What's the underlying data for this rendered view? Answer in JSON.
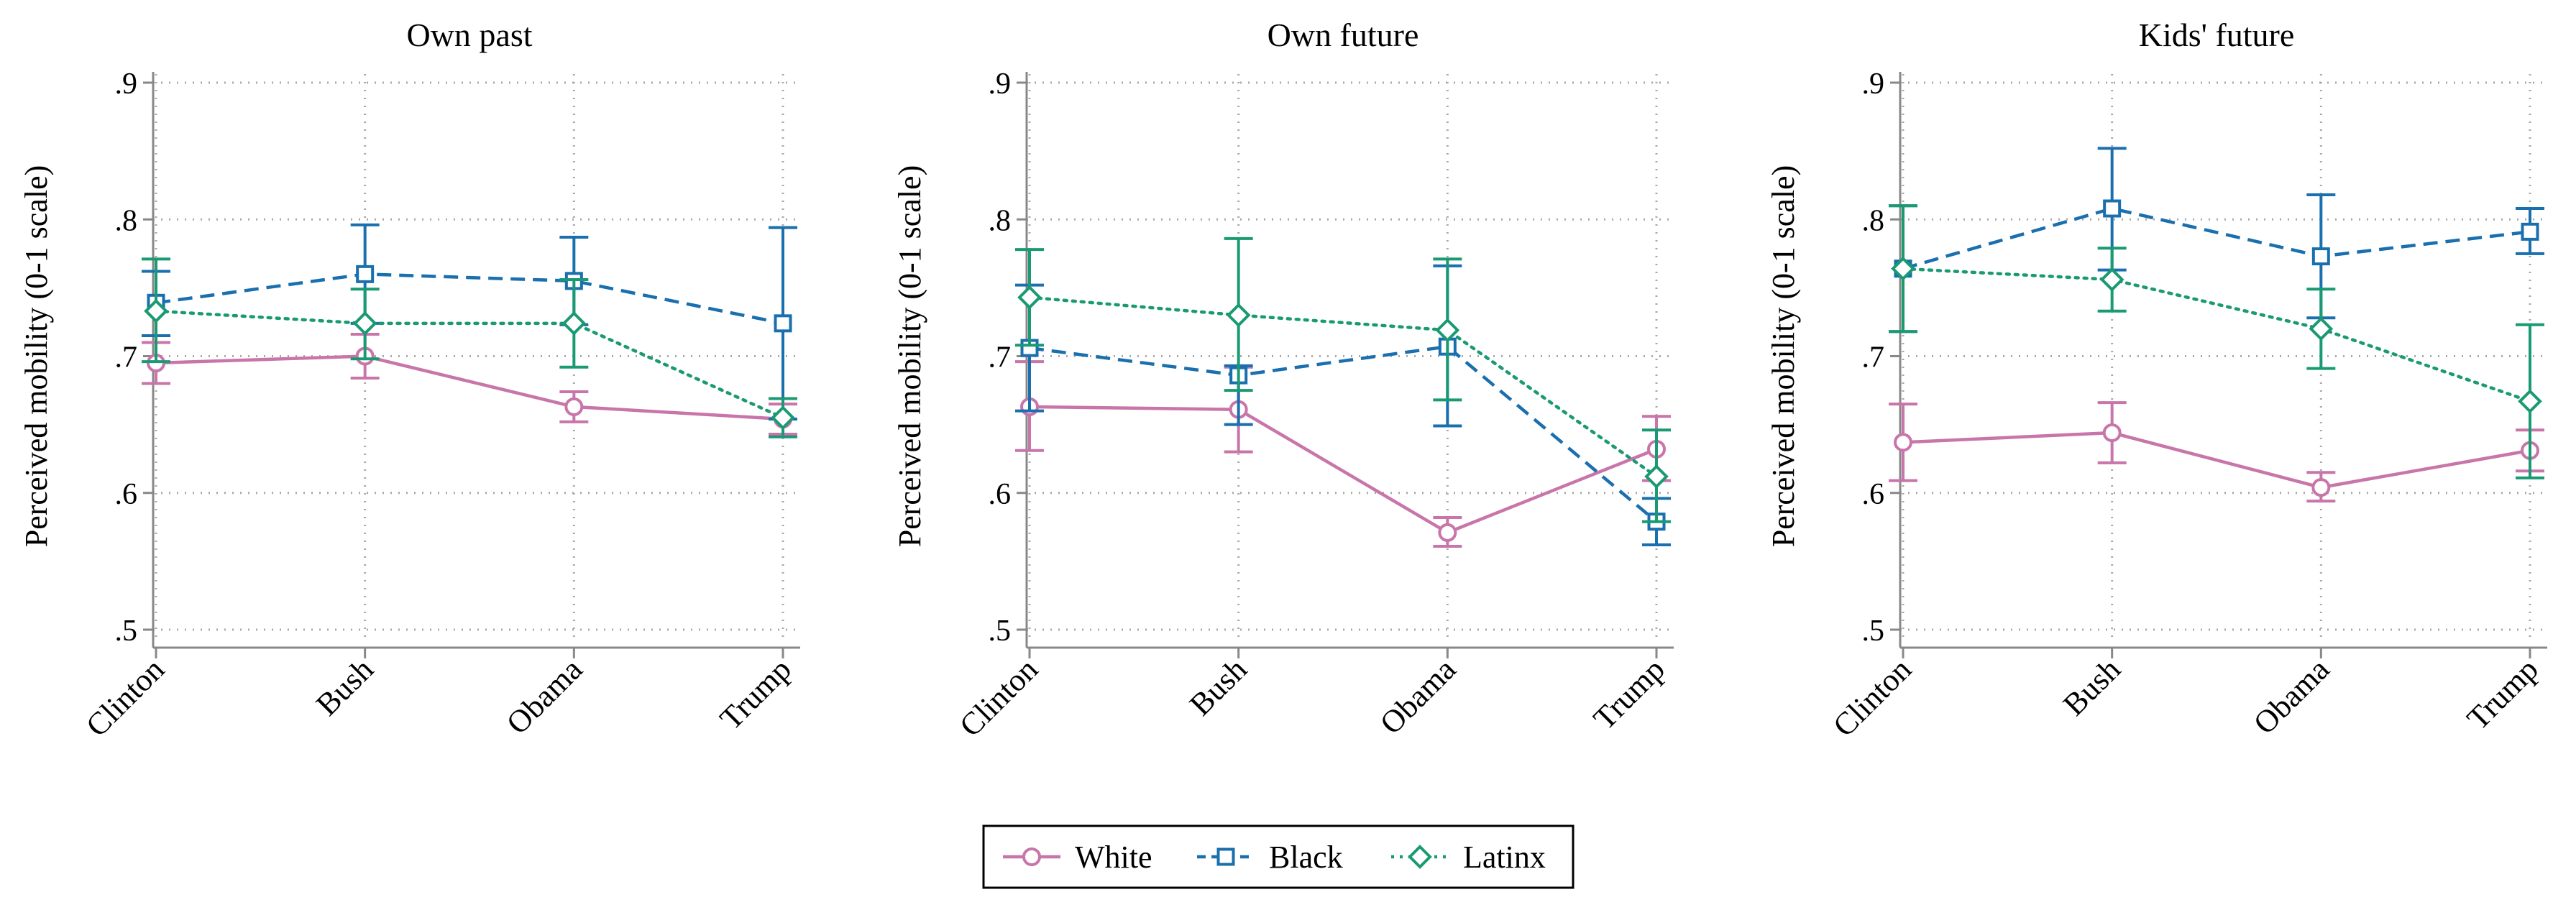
{
  "chart_data": {
    "type": "line",
    "categories": [
      "Clinton",
      "Bush",
      "Obama",
      "Trump"
    ],
    "ylabel": "Perceived mobility (0-1 scale)",
    "ylim": [
      0.5,
      0.9
    ],
    "yticks": [
      0.5,
      0.6,
      0.7,
      0.8,
      0.9
    ],
    "yticklabels": [
      ".5",
      ".6",
      ".7",
      ".8",
      ".9"
    ],
    "grid": true,
    "legend": {
      "position": "bottom-center",
      "labels": [
        "White",
        "Black",
        "Latinx"
      ]
    },
    "series_styles": [
      {
        "name": "White",
        "color": "#c875a9",
        "marker": "circle",
        "dash": "solid"
      },
      {
        "name": "Black",
        "color": "#1a6fae",
        "marker": "square",
        "dash": "dashed"
      },
      {
        "name": "Latinx",
        "color": "#1a9a72",
        "marker": "diamond",
        "dash": "dotted"
      }
    ],
    "panels": [
      {
        "title": "Own past",
        "series": [
          {
            "name": "White",
            "values": [
              0.695,
              0.7,
              0.663,
              0.654
            ],
            "lower": [
              0.68,
              0.684,
              0.652,
              0.643
            ],
            "upper": [
              0.71,
              0.716,
              0.674,
              0.665
            ]
          },
          {
            "name": "Black",
            "values": [
              0.739,
              0.76,
              0.755,
              0.724
            ],
            "lower": [
              0.715,
              0.724,
              0.723,
              0.654
            ],
            "upper": [
              0.762,
              0.796,
              0.787,
              0.794
            ]
          },
          {
            "name": "Latinx",
            "values": [
              0.733,
              0.724,
              0.724,
              0.655
            ],
            "lower": [
              0.696,
              0.698,
              0.692,
              0.641
            ],
            "upper": [
              0.771,
              0.749,
              0.756,
              0.669
            ]
          }
        ]
      },
      {
        "title": "Own future",
        "series": [
          {
            "name": "White",
            "values": [
              0.663,
              0.661,
              0.571,
              0.632
            ],
            "lower": [
              0.631,
              0.63,
              0.561,
              0.609
            ],
            "upper": [
              0.696,
              0.692,
              0.582,
              0.656
            ]
          },
          {
            "name": "Black",
            "values": [
              0.706,
              0.686,
              0.707,
              0.579
            ],
            "lower": [
              0.66,
              0.65,
              0.649,
              0.562
            ],
            "upper": [
              0.752,
              0.693,
              0.766,
              0.596
            ]
          },
          {
            "name": "Latinx",
            "values": [
              0.743,
              0.73,
              0.719,
              0.612
            ],
            "lower": [
              0.708,
              0.675,
              0.668,
              0.579
            ],
            "upper": [
              0.778,
              0.786,
              0.771,
              0.646
            ]
          }
        ]
      },
      {
        "title": "Kids' future",
        "series": [
          {
            "name": "White",
            "values": [
              0.637,
              0.644,
              0.604,
              0.631
            ],
            "lower": [
              0.609,
              0.622,
              0.594,
              0.616
            ],
            "upper": [
              0.665,
              0.666,
              0.615,
              0.646
            ]
          },
          {
            "name": "Black",
            "values": [
              0.764,
              0.808,
              0.773,
              0.791
            ],
            "lower": [
              0.718,
              0.763,
              0.728,
              0.775
            ],
            "upper": [
              0.81,
              0.852,
              0.818,
              0.808
            ]
          },
          {
            "name": "Latinx",
            "values": [
              0.764,
              0.756,
              0.72,
              0.667
            ],
            "lower": [
              0.718,
              0.733,
              0.691,
              0.611
            ],
            "upper": [
              0.81,
              0.779,
              0.749,
              0.723
            ]
          }
        ]
      }
    ]
  }
}
